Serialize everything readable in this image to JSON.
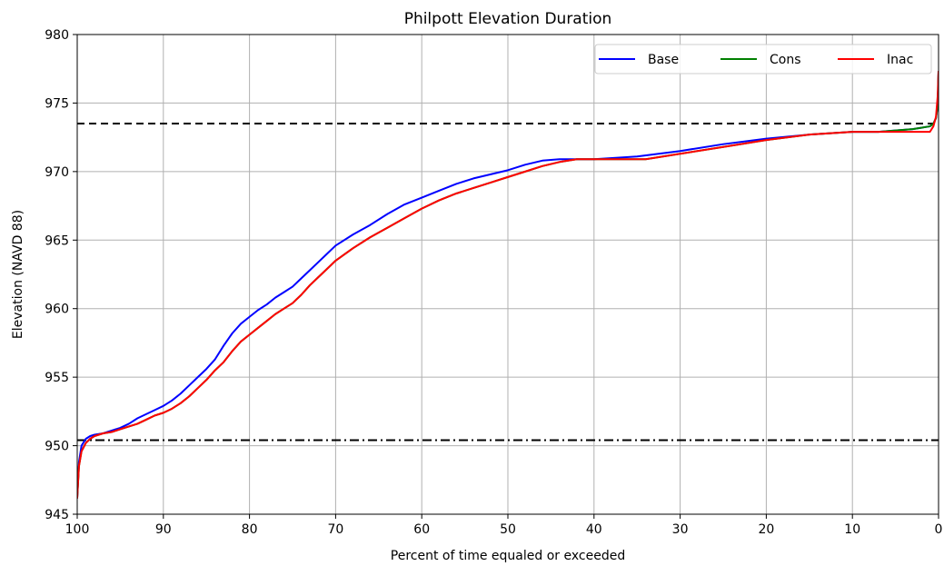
{
  "chart_data": {
    "type": "line",
    "title": "Philpott Elevation Duration",
    "xlabel": "Percent of time equaled or exceeded",
    "ylabel": "Elevation (NAVD 88)",
    "xlim": [
      100,
      0
    ],
    "ylim": [
      945,
      980
    ],
    "x_ticks": [
      100,
      90,
      80,
      70,
      60,
      50,
      40,
      30,
      20,
      10,
      0
    ],
    "y_ticks": [
      945,
      950,
      955,
      960,
      965,
      970,
      975,
      980
    ],
    "grid": true,
    "legend_position": "top-right",
    "series": [
      {
        "name": "Base",
        "color": "#0000ff",
        "x": [
          100,
          99.8,
          99.5,
          99,
          98.5,
          98,
          97,
          96,
          95,
          94,
          93,
          92,
          91,
          90,
          89,
          88,
          87,
          86,
          85,
          84,
          83,
          82,
          81,
          80,
          79,
          78,
          77,
          76,
          75,
          74,
          73,
          72,
          71,
          70,
          68,
          66,
          64,
          62,
          60,
          58,
          56,
          54,
          52,
          50,
          48,
          46,
          44,
          42,
          40,
          35,
          30,
          25,
          20,
          15,
          10,
          7,
          5,
          3,
          2,
          1,
          0.6,
          0.3,
          0.1,
          0
        ],
        "y": [
          946.2,
          948.8,
          950.0,
          950.5,
          950.7,
          950.8,
          950.9,
          951.1,
          951.3,
          951.6,
          952.0,
          952.3,
          952.6,
          952.9,
          953.3,
          953.8,
          954.4,
          955.0,
          955.6,
          956.3,
          957.3,
          958.2,
          958.9,
          959.4,
          959.9,
          960.3,
          960.8,
          961.2,
          961.6,
          962.2,
          962.8,
          963.4,
          964.0,
          964.6,
          965.4,
          966.1,
          966.9,
          967.6,
          968.1,
          968.6,
          969.1,
          969.5,
          969.8,
          970.1,
          970.5,
          970.8,
          970.9,
          970.9,
          970.9,
          971.1,
          971.5,
          972.0,
          972.4,
          972.7,
          972.9,
          972.9,
          973.0,
          973.1,
          973.2,
          973.3,
          973.5,
          973.9,
          974.8,
          977.3
        ]
      },
      {
        "name": "Cons",
        "color": "#008000",
        "x": [
          100,
          99.8,
          99.5,
          99,
          98.5,
          98,
          97,
          96,
          95,
          94,
          93,
          92,
          91,
          90,
          89,
          88,
          87,
          86,
          85,
          84,
          83,
          82,
          81,
          80,
          79,
          78,
          77,
          76,
          75,
          74,
          73,
          72,
          71,
          70,
          68,
          66,
          64,
          62,
          60,
          58,
          56,
          54,
          52,
          50,
          48,
          46,
          44,
          42,
          40,
          35,
          34,
          30,
          25,
          20,
          15,
          10,
          7,
          5,
          3,
          2,
          1,
          0.6,
          0.3,
          0.1,
          0
        ],
        "y": [
          946.2,
          948.5,
          949.6,
          950.2,
          950.5,
          950.7,
          950.9,
          951.0,
          951.2,
          951.4,
          951.6,
          951.9,
          952.2,
          952.4,
          952.7,
          953.1,
          953.6,
          954.2,
          954.8,
          955.5,
          956.1,
          956.9,
          957.6,
          958.1,
          958.6,
          959.1,
          959.6,
          960.0,
          960.4,
          961.0,
          961.7,
          962.3,
          962.9,
          963.5,
          964.4,
          965.2,
          965.9,
          966.6,
          967.3,
          967.9,
          968.4,
          968.8,
          969.2,
          969.6,
          970.0,
          970.4,
          970.7,
          970.9,
          970.9,
          970.9,
          970.9,
          971.3,
          971.8,
          972.3,
          972.7,
          972.9,
          972.9,
          973.0,
          973.1,
          973.2,
          973.3,
          973.5,
          973.9,
          974.8,
          977.3
        ]
      },
      {
        "name": "Inac",
        "color": "#ff0000",
        "x": [
          100,
          99.8,
          99.5,
          99,
          98.5,
          98,
          97,
          96,
          95,
          94,
          93,
          92,
          91,
          90,
          89,
          88,
          87,
          86,
          85,
          84,
          83,
          82,
          81,
          80,
          79,
          78,
          77,
          76,
          75,
          74,
          73,
          72,
          71,
          70,
          68,
          66,
          64,
          62,
          60,
          58,
          56,
          54,
          52,
          50,
          48,
          46,
          44,
          42,
          40,
          35,
          34,
          30,
          25,
          20,
          15,
          10,
          7,
          5,
          3,
          1,
          0.6,
          0.3,
          0.1,
          0
        ],
        "y": [
          946.2,
          948.5,
          949.6,
          950.2,
          950.5,
          950.7,
          950.9,
          951.0,
          951.2,
          951.4,
          951.6,
          951.9,
          952.2,
          952.4,
          952.7,
          953.1,
          953.6,
          954.2,
          954.8,
          955.5,
          956.1,
          956.9,
          957.6,
          958.1,
          958.6,
          959.1,
          959.6,
          960.0,
          960.4,
          961.0,
          961.7,
          962.3,
          962.9,
          963.5,
          964.4,
          965.2,
          965.9,
          966.6,
          967.3,
          967.9,
          968.4,
          968.8,
          969.2,
          969.6,
          970.0,
          970.4,
          970.7,
          970.9,
          970.9,
          970.9,
          970.9,
          971.3,
          971.8,
          972.3,
          972.7,
          972.9,
          972.9,
          972.9,
          972.9,
          972.9,
          973.3,
          974.0,
          975.5,
          977.3
        ]
      }
    ],
    "reference_lines": [
      {
        "style": "dashed",
        "y": 973.5,
        "color": "#000000"
      },
      {
        "style": "dashdot",
        "y": 950.4,
        "color": "#000000"
      }
    ]
  }
}
